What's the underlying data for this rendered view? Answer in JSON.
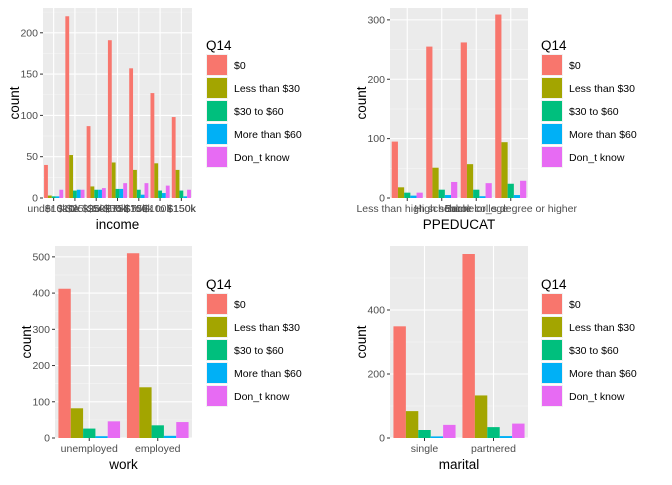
{
  "colors": {
    "panel_background": "#EBEBEB",
    "grid_major": "#FFFFFF",
    "grid_minor": "#F5F5F5",
    "tick_text": "#4D4D4D",
    "title_text": "#000000"
  },
  "legend": {
    "title": "Q14",
    "entries": [
      {
        "label": "$0",
        "color": "#F8766D"
      },
      {
        "label": "Less than $30",
        "color": "#A3A500"
      },
      {
        "label": "$30 to $60",
        "color": "#00BF7D"
      },
      {
        "label": "More than $60",
        "color": "#00B0F6"
      },
      {
        "label": "Don_t know",
        "color": "#E76BF3"
      }
    ]
  },
  "chart_data": [
    {
      "type": "bar",
      "position": "dodge",
      "xlabel": "income",
      "ylabel": "count",
      "ylim": [
        0,
        230
      ],
      "yticks": [
        0,
        50,
        100,
        150,
        200
      ],
      "categories": [
        "under $10k",
        "$10k to $25k",
        "$25k to $50k",
        "$50k to $75k",
        "$75k to $100k",
        "$100k to $150k",
        "$150k"
      ],
      "series": [
        {
          "name": "$0",
          "values": [
            40,
            220,
            87,
            191,
            157,
            127,
            98
          ]
        },
        {
          "name": "Less than $30",
          "values": [
            3,
            52,
            14,
            43,
            34,
            42,
            34
          ]
        },
        {
          "name": "$30 to $60",
          "values": [
            2,
            9,
            10,
            11,
            10,
            9,
            9
          ]
        },
        {
          "name": "More than $60",
          "values": [
            2,
            10,
            10,
            11,
            4,
            6,
            2
          ]
        },
        {
          "name": "Don_t know",
          "values": [
            10,
            10,
            12,
            18,
            18,
            15,
            10
          ]
        }
      ]
    },
    {
      "type": "bar",
      "position": "dodge",
      "xlabel": "PPEDUCAT",
      "ylabel": "count",
      "ylim": [
        0,
        320
      ],
      "yticks": [
        0,
        100,
        200,
        300
      ],
      "categories": [
        "Less than high school",
        "High school",
        "Some college",
        "Bachelor_s degree or higher"
      ],
      "series": [
        {
          "name": "$0",
          "values": [
            95,
            255,
            262,
            309
          ]
        },
        {
          "name": "Less than $30",
          "values": [
            18,
            51,
            57,
            94
          ]
        },
        {
          "name": "$30 to $60",
          "values": [
            9,
            14,
            14,
            24
          ]
        },
        {
          "name": "More than $60",
          "values": [
            4,
            5,
            3,
            5
          ]
        },
        {
          "name": "Don_t know",
          "values": [
            9,
            27,
            25,
            29
          ]
        }
      ]
    },
    {
      "type": "bar",
      "position": "dodge",
      "xlabel": "work",
      "ylabel": "count",
      "ylim": [
        0,
        530
      ],
      "yticks": [
        0,
        100,
        200,
        300,
        400,
        500
      ],
      "categories": [
        "unemployed",
        "employed"
      ],
      "series": [
        {
          "name": "$0",
          "values": [
            412,
            510
          ]
        },
        {
          "name": "Less than $30",
          "values": [
            82,
            140
          ]
        },
        {
          "name": "$30 to $60",
          "values": [
            26,
            35
          ]
        },
        {
          "name": "More than $60",
          "values": [
            5,
            6
          ]
        },
        {
          "name": "Don_t know",
          "values": [
            46,
            44
          ]
        }
      ]
    },
    {
      "type": "bar",
      "position": "dodge",
      "xlabel": "marital",
      "ylabel": "count",
      "ylim": [
        0,
        600
      ],
      "yticks": [
        0,
        200,
        400
      ],
      "categories": [
        "single",
        "partnered"
      ],
      "series": [
        {
          "name": "$0",
          "values": [
            349,
            575
          ]
        },
        {
          "name": "Less than $30",
          "values": [
            84,
            133
          ]
        },
        {
          "name": "$30 to $60",
          "values": [
            25,
            34
          ]
        },
        {
          "name": "More than $60",
          "values": [
            5,
            6
          ]
        },
        {
          "name": "Don_t know",
          "values": [
            41,
            45
          ]
        }
      ]
    }
  ]
}
